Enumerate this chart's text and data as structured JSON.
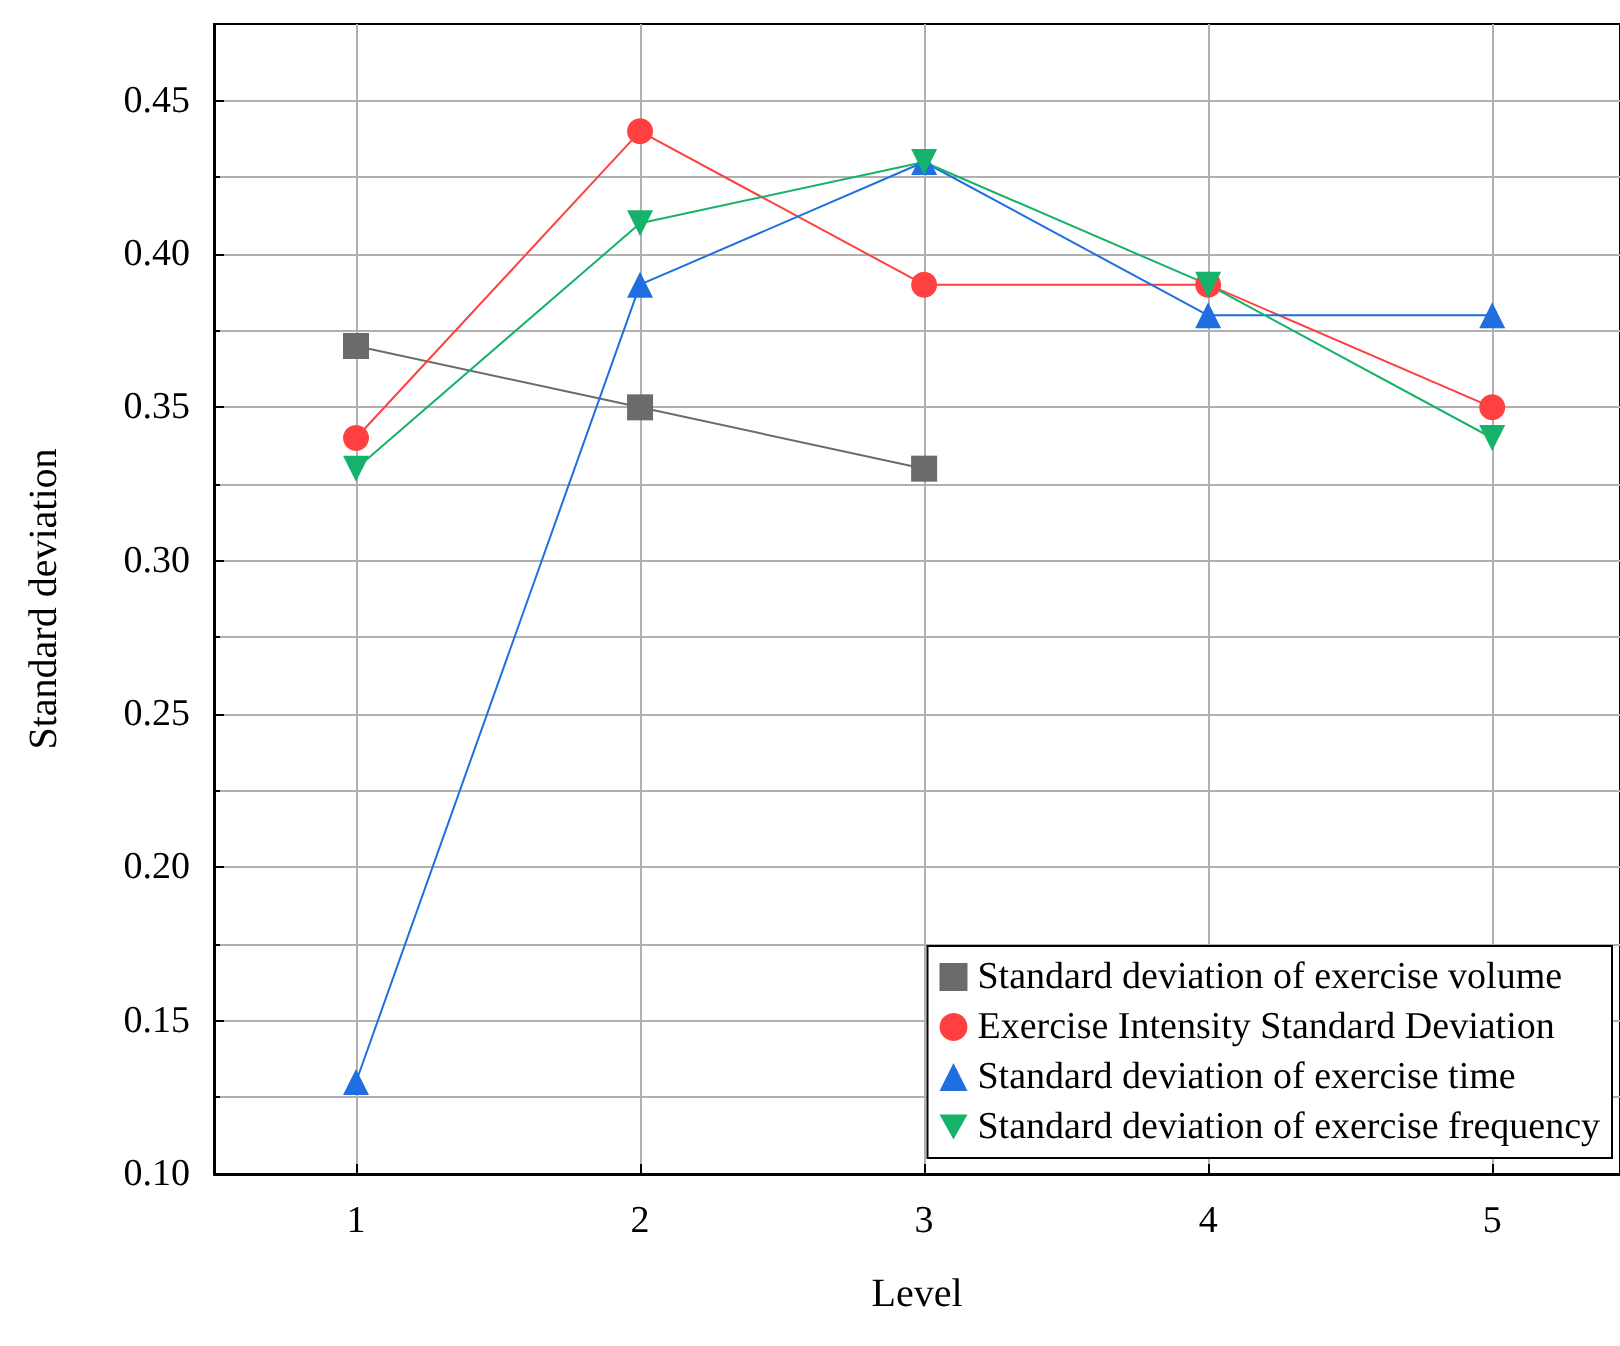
{
  "chart_data": {
    "type": "line",
    "xlabel": "Level",
    "ylabel": "Standard deviation",
    "x": [
      1,
      2,
      3,
      4,
      5
    ],
    "xlim": [
      0.5,
      5.45
    ],
    "xticks": [
      1,
      2,
      3,
      4,
      5
    ],
    "ylim": [
      0.1,
      0.475
    ],
    "yticks": [
      {
        "value": 0.1,
        "label": "0.10"
      },
      0.15,
      {
        "value": 0.2,
        "label": "0.20"
      },
      0.25,
      {
        "value": 0.3,
        "label": "0.30"
      },
      0.35,
      {
        "value": 0.4,
        "label": "0.40"
      },
      0.45
    ],
    "grid": true,
    "legend": "bottom right",
    "series": [
      {
        "name": "Standard deviation of exercise volume",
        "color": "#6b6b6b",
        "marker": "square",
        "values": [
          0.37,
          0.35,
          0.33,
          null,
          null
        ]
      },
      {
        "name": "Exercise Intensity Standard Deviation",
        "color": "#ff4040",
        "marker": "circle",
        "values": [
          0.34,
          0.44,
          0.39,
          0.39,
          0.35
        ]
      },
      {
        "name": "Standard deviation of exercise time",
        "color": "#1f6fe0",
        "marker": "triangle",
        "values": [
          0.13,
          0.39,
          0.43,
          0.38,
          0.38
        ]
      },
      {
        "name": "Standard deviation of exercise frequency",
        "color": "#17b26a",
        "marker": "triangle-down",
        "values": [
          0.33,
          0.41,
          0.43,
          0.39,
          0.34
        ]
      }
    ]
  }
}
